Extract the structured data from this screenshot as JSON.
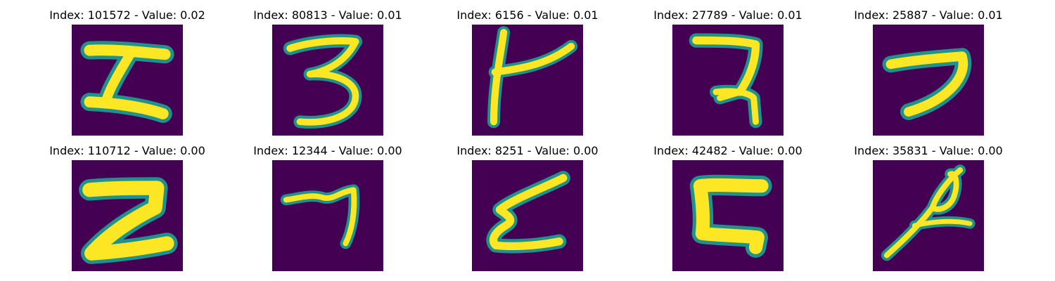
{
  "colors": {
    "background": "#440154",
    "low": "#3b528b",
    "mid": "#21918c",
    "high": "#fde725"
  },
  "panels": [
    {
      "title": "Index: 101572 - Value: 0.02",
      "glyph": "digit-5-like"
    },
    {
      "title": "Index: 80813 - Value: 0.01",
      "glyph": "digit-3"
    },
    {
      "title": "Index: 6156 - Value: 0.01",
      "glyph": "digit-4-like"
    },
    {
      "title": "Index: 27789 - Value: 0.01",
      "glyph": "digit-7-like"
    },
    {
      "title": "Index: 25887 - Value: 0.01",
      "glyph": "digit-2-like"
    },
    {
      "title": "Index: 110712 - Value: 0.00",
      "glyph": "digit-2-bold"
    },
    {
      "title": "Index: 12344 - Value: 0.00",
      "glyph": "digit-7"
    },
    {
      "title": "Index: 8251 - Value: 0.00",
      "glyph": "digit-2-curly"
    },
    {
      "title": "Index: 42482 - Value: 0.00",
      "glyph": "letter-c-like"
    },
    {
      "title": "Index: 35831 - Value: 0.00",
      "glyph": "digit-8-like"
    }
  ]
}
